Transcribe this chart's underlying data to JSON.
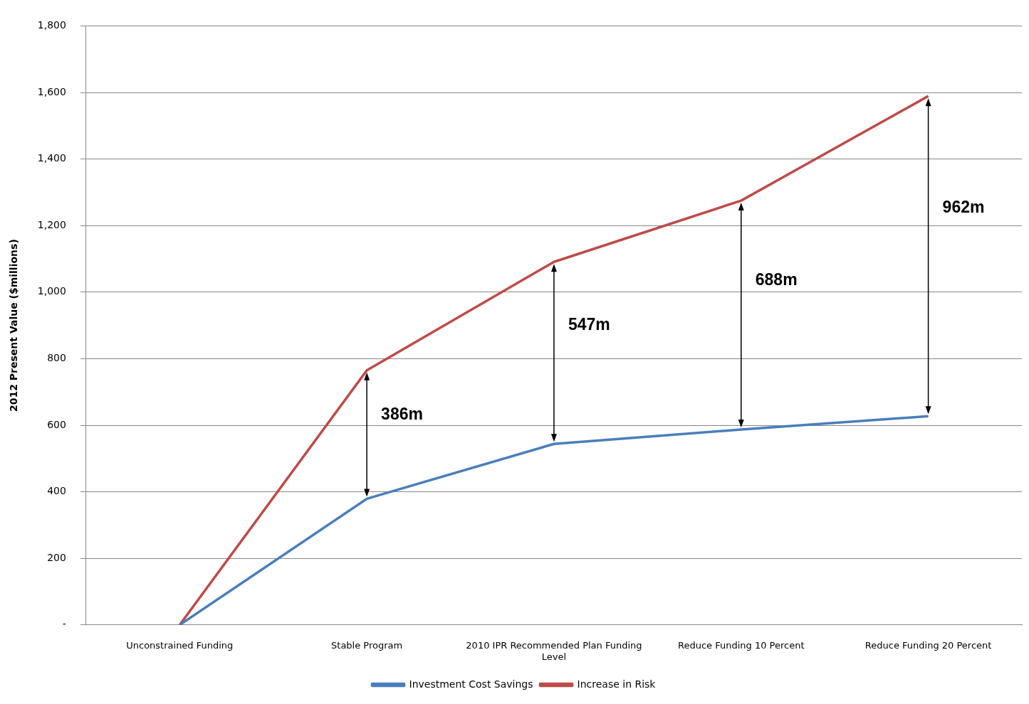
{
  "chart_data": {
    "type": "line",
    "ylabel": "2012 Present Value ($millions)",
    "categories": [
      "Unconstrained Funding",
      "Stable Program",
      "2010 IPR Recommended Plan Funding Level",
      "Reduce Funding 10 Percent",
      "Reduce Funding 20 Percent"
    ],
    "series": [
      {
        "name": "Investment Cost Savings",
        "color": "#4a7ebb",
        "values": [
          0,
          379,
          544,
          587,
          627
        ]
      },
      {
        "name": "Increase in Risk",
        "color": "#be4b48",
        "values": [
          0,
          765,
          1091,
          1275,
          1589
        ]
      }
    ],
    "ylim": [
      0,
      1800
    ],
    "yticks": [
      {
        "value": 0,
        "label": "-"
      },
      {
        "value": 200,
        "label": "200"
      },
      {
        "value": 400,
        "label": "400"
      },
      {
        "value": 600,
        "label": "600"
      },
      {
        "value": 800,
        "label": "800"
      },
      {
        "value": 1000,
        "label": "1,000"
      },
      {
        "value": 1200,
        "label": "1,200"
      },
      {
        "value": 1400,
        "label": "1,400"
      },
      {
        "value": 1600,
        "label": "1,600"
      },
      {
        "value": 1800,
        "label": "1,800"
      }
    ],
    "annotations": [
      "386m",
      "547m",
      "688m",
      "962m"
    ],
    "grid": "y",
    "legend": "bottom",
    "marker": "none",
    "line_style": "solid"
  }
}
